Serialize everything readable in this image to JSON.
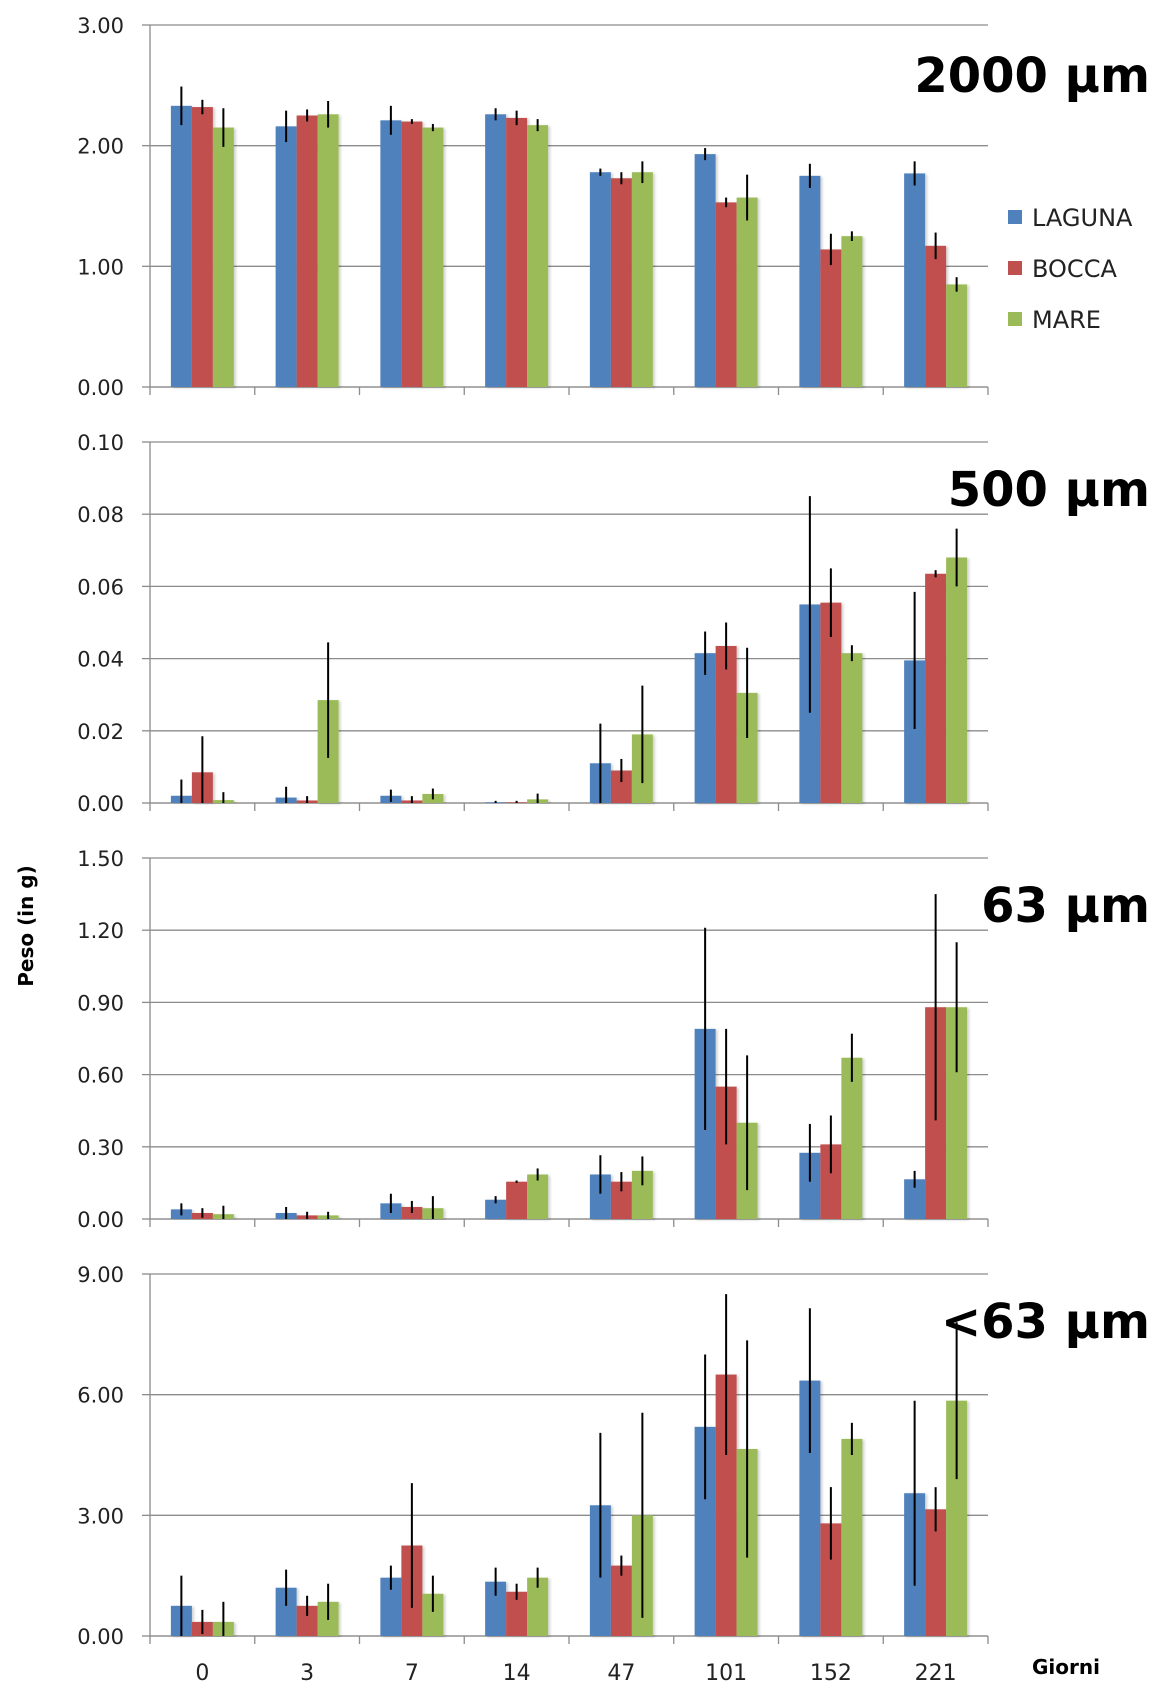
{
  "chart_data": {
    "type": "bar",
    "ylabel": "Peso (in g)",
    "xlabel": "Giorni",
    "categories": [
      "0",
      "3",
      "7",
      "14",
      "47",
      "101",
      "152",
      "221"
    ],
    "legend": {
      "position": "right of top panel",
      "entries": [
        {
          "name": "LAGUNA",
          "color": "#4f81bd"
        },
        {
          "name": "BOCCA",
          "color": "#c0504d"
        },
        {
          "name": "MARE",
          "color": "#9bbb59"
        }
      ]
    },
    "grid": "horizontal",
    "panels": [
      {
        "title": "2000 µm",
        "ylim": [
          0,
          3
        ],
        "yticks": [
          "0.00",
          "1.00",
          "2.00",
          "3.00"
        ],
        "series": [
          {
            "name": "LAGUNA",
            "values": [
              2.33,
              2.16,
              2.21,
              2.26,
              1.78,
              1.93,
              1.75,
              1.77
            ],
            "errors": [
              0.16,
              0.13,
              0.12,
              0.05,
              0.03,
              0.05,
              0.1,
              0.1
            ]
          },
          {
            "name": "BOCCA",
            "values": [
              2.32,
              2.25,
              2.2,
              2.23,
              1.73,
              1.53,
              1.14,
              1.17
            ],
            "errors": [
              0.06,
              0.05,
              0.02,
              0.06,
              0.05,
              0.04,
              0.13,
              0.11
            ]
          },
          {
            "name": "MARE",
            "values": [
              2.15,
              2.26,
              2.15,
              2.17,
              1.78,
              1.57,
              1.25,
              0.85
            ],
            "errors": [
              0.16,
              0.11,
              0.03,
              0.05,
              0.09,
              0.19,
              0.04,
              0.06
            ]
          }
        ]
      },
      {
        "title": "500 µm",
        "ylim": [
          0,
          0.1
        ],
        "yticks": [
          "0.00",
          "0.02",
          "0.04",
          "0.06",
          "0.08",
          "0.10"
        ],
        "series": [
          {
            "name": "LAGUNA",
            "values": [
              0.002,
              0.0015,
              0.002,
              0.0002,
              0.011,
              0.0415,
              0.055,
              0.0395
            ],
            "errors": [
              0.0045,
              0.003,
              0.0017,
              0.0004,
              0.011,
              0.006,
              0.03,
              0.019
            ]
          },
          {
            "name": "BOCCA",
            "values": [
              0.0085,
              0.0007,
              0.0007,
              0.0002,
              0.009,
              0.0435,
              0.0555,
              0.0635
            ],
            "errors": [
              0.01,
              0.0012,
              0.0012,
              0.0004,
              0.0032,
              0.0065,
              0.0095,
              0.001
            ]
          },
          {
            "name": "MARE",
            "values": [
              0.0008,
              0.0285,
              0.0025,
              0.001,
              0.019,
              0.0305,
              0.0415,
              0.068
            ],
            "errors": [
              0.0022,
              0.016,
              0.0015,
              0.0016,
              0.0135,
              0.0125,
              0.0022,
              0.008
            ]
          }
        ]
      },
      {
        "title": "63 µm",
        "ylim": [
          0,
          1.5
        ],
        "yticks": [
          "0.00",
          "0.30",
          "0.60",
          "0.90",
          "1.20",
          "1.50"
        ],
        "series": [
          {
            "name": "LAGUNA",
            "values": [
              0.04,
              0.025,
              0.065,
              0.08,
              0.185,
              0.79,
              0.275,
              0.165
            ],
            "errors": [
              0.025,
              0.025,
              0.04,
              0.015,
              0.08,
              0.42,
              0.12,
              0.035
            ]
          },
          {
            "name": "BOCCA",
            "values": [
              0.025,
              0.015,
              0.05,
              0.155,
              0.155,
              0.55,
              0.31,
              0.88
            ],
            "errors": [
              0.02,
              0.015,
              0.025,
              0.005,
              0.04,
              0.24,
              0.12,
              0.47
            ]
          },
          {
            "name": "MARE",
            "values": [
              0.02,
              0.015,
              0.045,
              0.185,
              0.2,
              0.4,
              0.67,
              0.88
            ],
            "errors": [
              0.035,
              0.015,
              0.05,
              0.025,
              0.06,
              0.28,
              0.1,
              0.27
            ]
          }
        ]
      },
      {
        "title": "<63 µm",
        "ylim": [
          0,
          9
        ],
        "yticks": [
          "0.00",
          "3.00",
          "6.00",
          "9.00"
        ],
        "series": [
          {
            "name": "LAGUNA",
            "values": [
              0.75,
              1.2,
              1.45,
              1.35,
              3.25,
              5.2,
              6.35,
              3.55
            ],
            "errors": [
              0.75,
              0.45,
              0.3,
              0.35,
              1.8,
              1.8,
              1.8,
              2.3
            ]
          },
          {
            "name": "BOCCA",
            "values": [
              0.35,
              0.75,
              2.25,
              1.1,
              1.75,
              6.5,
              2.8,
              3.15
            ],
            "errors": [
              0.3,
              0.25,
              1.55,
              0.2,
              0.25,
              2.0,
              0.9,
              0.55
            ]
          },
          {
            "name": "MARE",
            "values": [
              0.35,
              0.85,
              1.05,
              1.45,
              3.0,
              4.65,
              4.9,
              5.85
            ],
            "errors": [
              0.5,
              0.45,
              0.45,
              0.25,
              2.55,
              2.7,
              0.4,
              1.95
            ]
          }
        ]
      }
    ]
  }
}
